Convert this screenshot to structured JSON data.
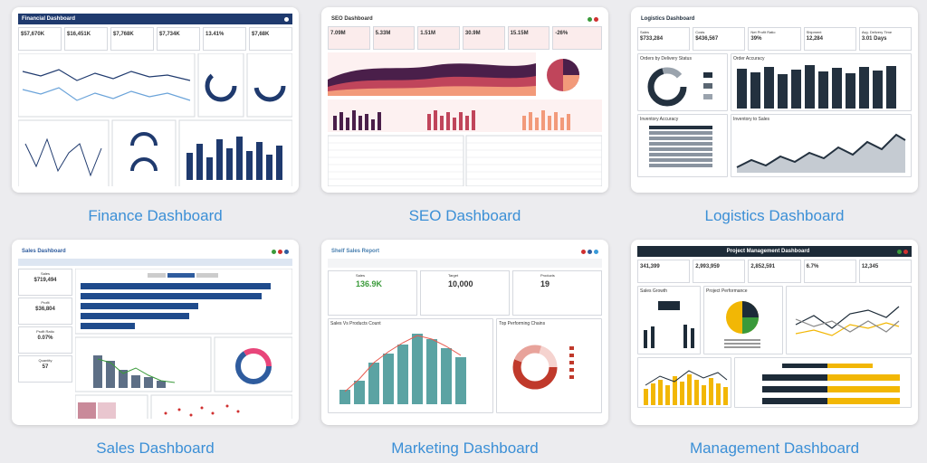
{
  "cards": [
    {
      "caption": "Finance Dashboard",
      "title": "Financial Dashboard",
      "kpis": [
        "$57,670K",
        "$16,451K",
        "$7,768K",
        "$7,734K",
        "13.41%",
        "$7,68K"
      ],
      "accent": "#1f3a6e"
    },
    {
      "caption": "SEO Dashboard",
      "title": "SEO Dashboard",
      "kpis": [
        "7.09M",
        "5.33M",
        "1.51M",
        "30.9M",
        "15.15M"
      ],
      "ratio": "-26%",
      "accent": "#4a1f4a"
    },
    {
      "caption": "Logistics Dashboard",
      "title": "Logistics Dashboard",
      "kpi_labels": [
        "Sales",
        "Costs",
        "Net Profit Ratio",
        "Shipment",
        "Avg. Delivery Time"
      ],
      "kpis": [
        "$733,284",
        "$436,567",
        "39%",
        "12,284",
        "3.01 Days"
      ],
      "sections": [
        "Orders by Delivery Status",
        "Order Accuracy",
        "Inventory Accuracy",
        "Inventory to Sales"
      ],
      "accent": "#23313f"
    },
    {
      "caption": "Sales Dashboard",
      "title": "Sales Dashboard",
      "kpi_labels": [
        "Sales",
        "Profit",
        "Profit Ratio",
        "Quantity"
      ],
      "kpis": [
        "$719,494",
        "$36,804",
        "0.07%",
        "57"
      ],
      "accent": "#2f5c9e"
    },
    {
      "caption": "Marketing Dashboard",
      "title": "Shelf Sales Report",
      "kpi_labels": [
        "Sales",
        "Target",
        "Products"
      ],
      "kpis": [
        "136.9K",
        "10,000",
        "19"
      ],
      "sections": [
        "Sales Vs Products Count",
        "Top Performing Chains"
      ],
      "accent": "#6a9cc4"
    },
    {
      "caption": "Management Dashboard",
      "title": "Project Management Dashboard",
      "kpis": [
        "341,399",
        "2,993,959",
        "2,852,591",
        "6.7%",
        "12,345"
      ],
      "sections": [
        "Sales Growth",
        "Project Performance"
      ],
      "accent": "#1d2b38"
    }
  ],
  "colors": {
    "finance": "#1f3a6e",
    "seo": "#4a1f4a",
    "logistics": "#23313f",
    "sales": "#2f5c9e",
    "marketing": "#5ba3a3",
    "management": "#f2b705",
    "caption": "#3b8fd6"
  }
}
